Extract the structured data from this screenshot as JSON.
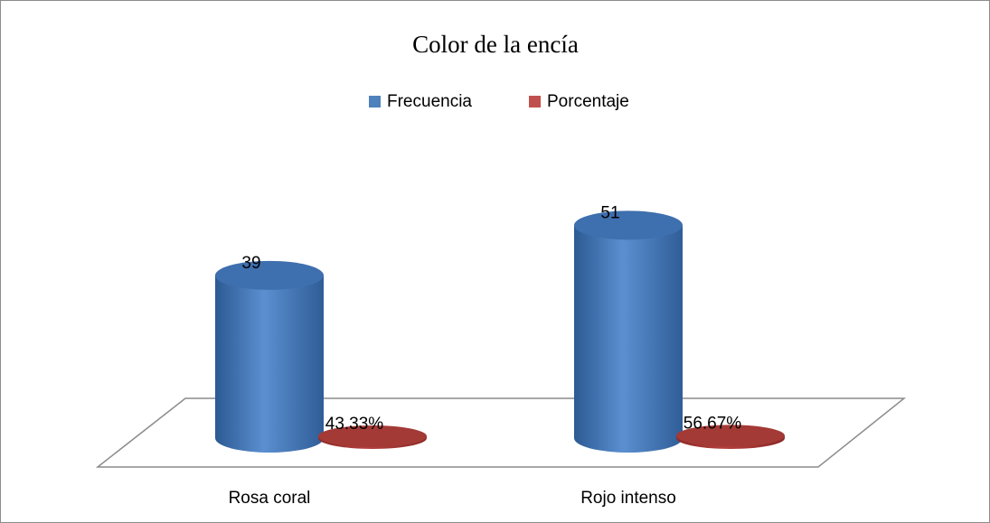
{
  "chart_data": {
    "type": "bar",
    "title": "Color de la encía",
    "categories": [
      "Rosa coral",
      "Rojo intenso"
    ],
    "series": [
      {
        "name": "Frecuencia",
        "color": "#4f81bd",
        "values": [
          39,
          51
        ]
      },
      {
        "name": "Porcentaje",
        "color": "#c0504d",
        "values": [
          0.4333,
          0.5667
        ],
        "value_labels": [
          "43.33%",
          "56.67%"
        ]
      }
    ],
    "legend": "top"
  }
}
